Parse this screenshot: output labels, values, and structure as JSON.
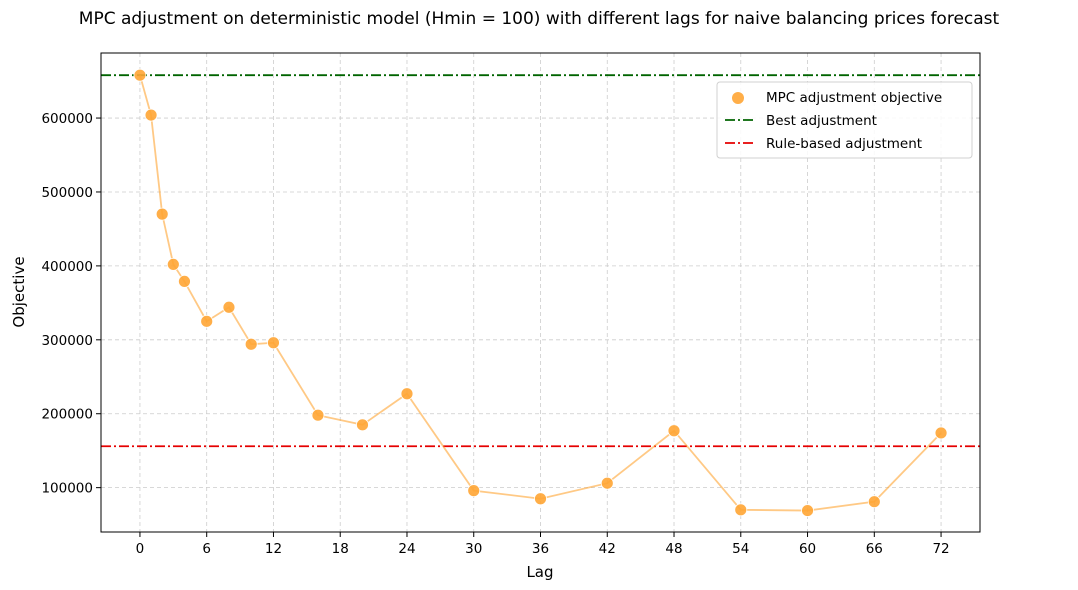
{
  "chart_data": {
    "type": "scatter",
    "title": "MPC adjustment on deterministic model (Hmin = 100) with different lags for naive balancing prices forecast",
    "xlabel": "Lag",
    "ylabel": "Objective",
    "xlim": [
      -3.5,
      75.5
    ],
    "ylim": [
      40000,
      688000
    ],
    "xticks": [
      0,
      6,
      12,
      18,
      24,
      30,
      36,
      42,
      48,
      54,
      60,
      66,
      72
    ],
    "yticks": [
      100000,
      200000,
      300000,
      400000,
      500000,
      600000
    ],
    "grid": true,
    "legend_position": "top-right",
    "series": [
      {
        "name": "MPC adjustment objective",
        "color": "#ffa534",
        "x": [
          0,
          1,
          2,
          3,
          4,
          6,
          8,
          10,
          12,
          16,
          20,
          24,
          30,
          36,
          42,
          48,
          54,
          60,
          66,
          72
        ],
        "y": [
          658000,
          604000,
          470000,
          402000,
          379000,
          325000,
          344000,
          294000,
          296000,
          198000,
          185000,
          227000,
          96000,
          85000,
          106000,
          177000,
          70000,
          69000,
          81000,
          174000
        ]
      }
    ],
    "reference_lines": [
      {
        "name": "Best adjustment",
        "value": 658000,
        "color": "#006400",
        "style": "dash-dot"
      },
      {
        "name": "Rule-based adjustment",
        "value": 156000,
        "color": "#e50000",
        "style": "dash-dot"
      }
    ]
  }
}
